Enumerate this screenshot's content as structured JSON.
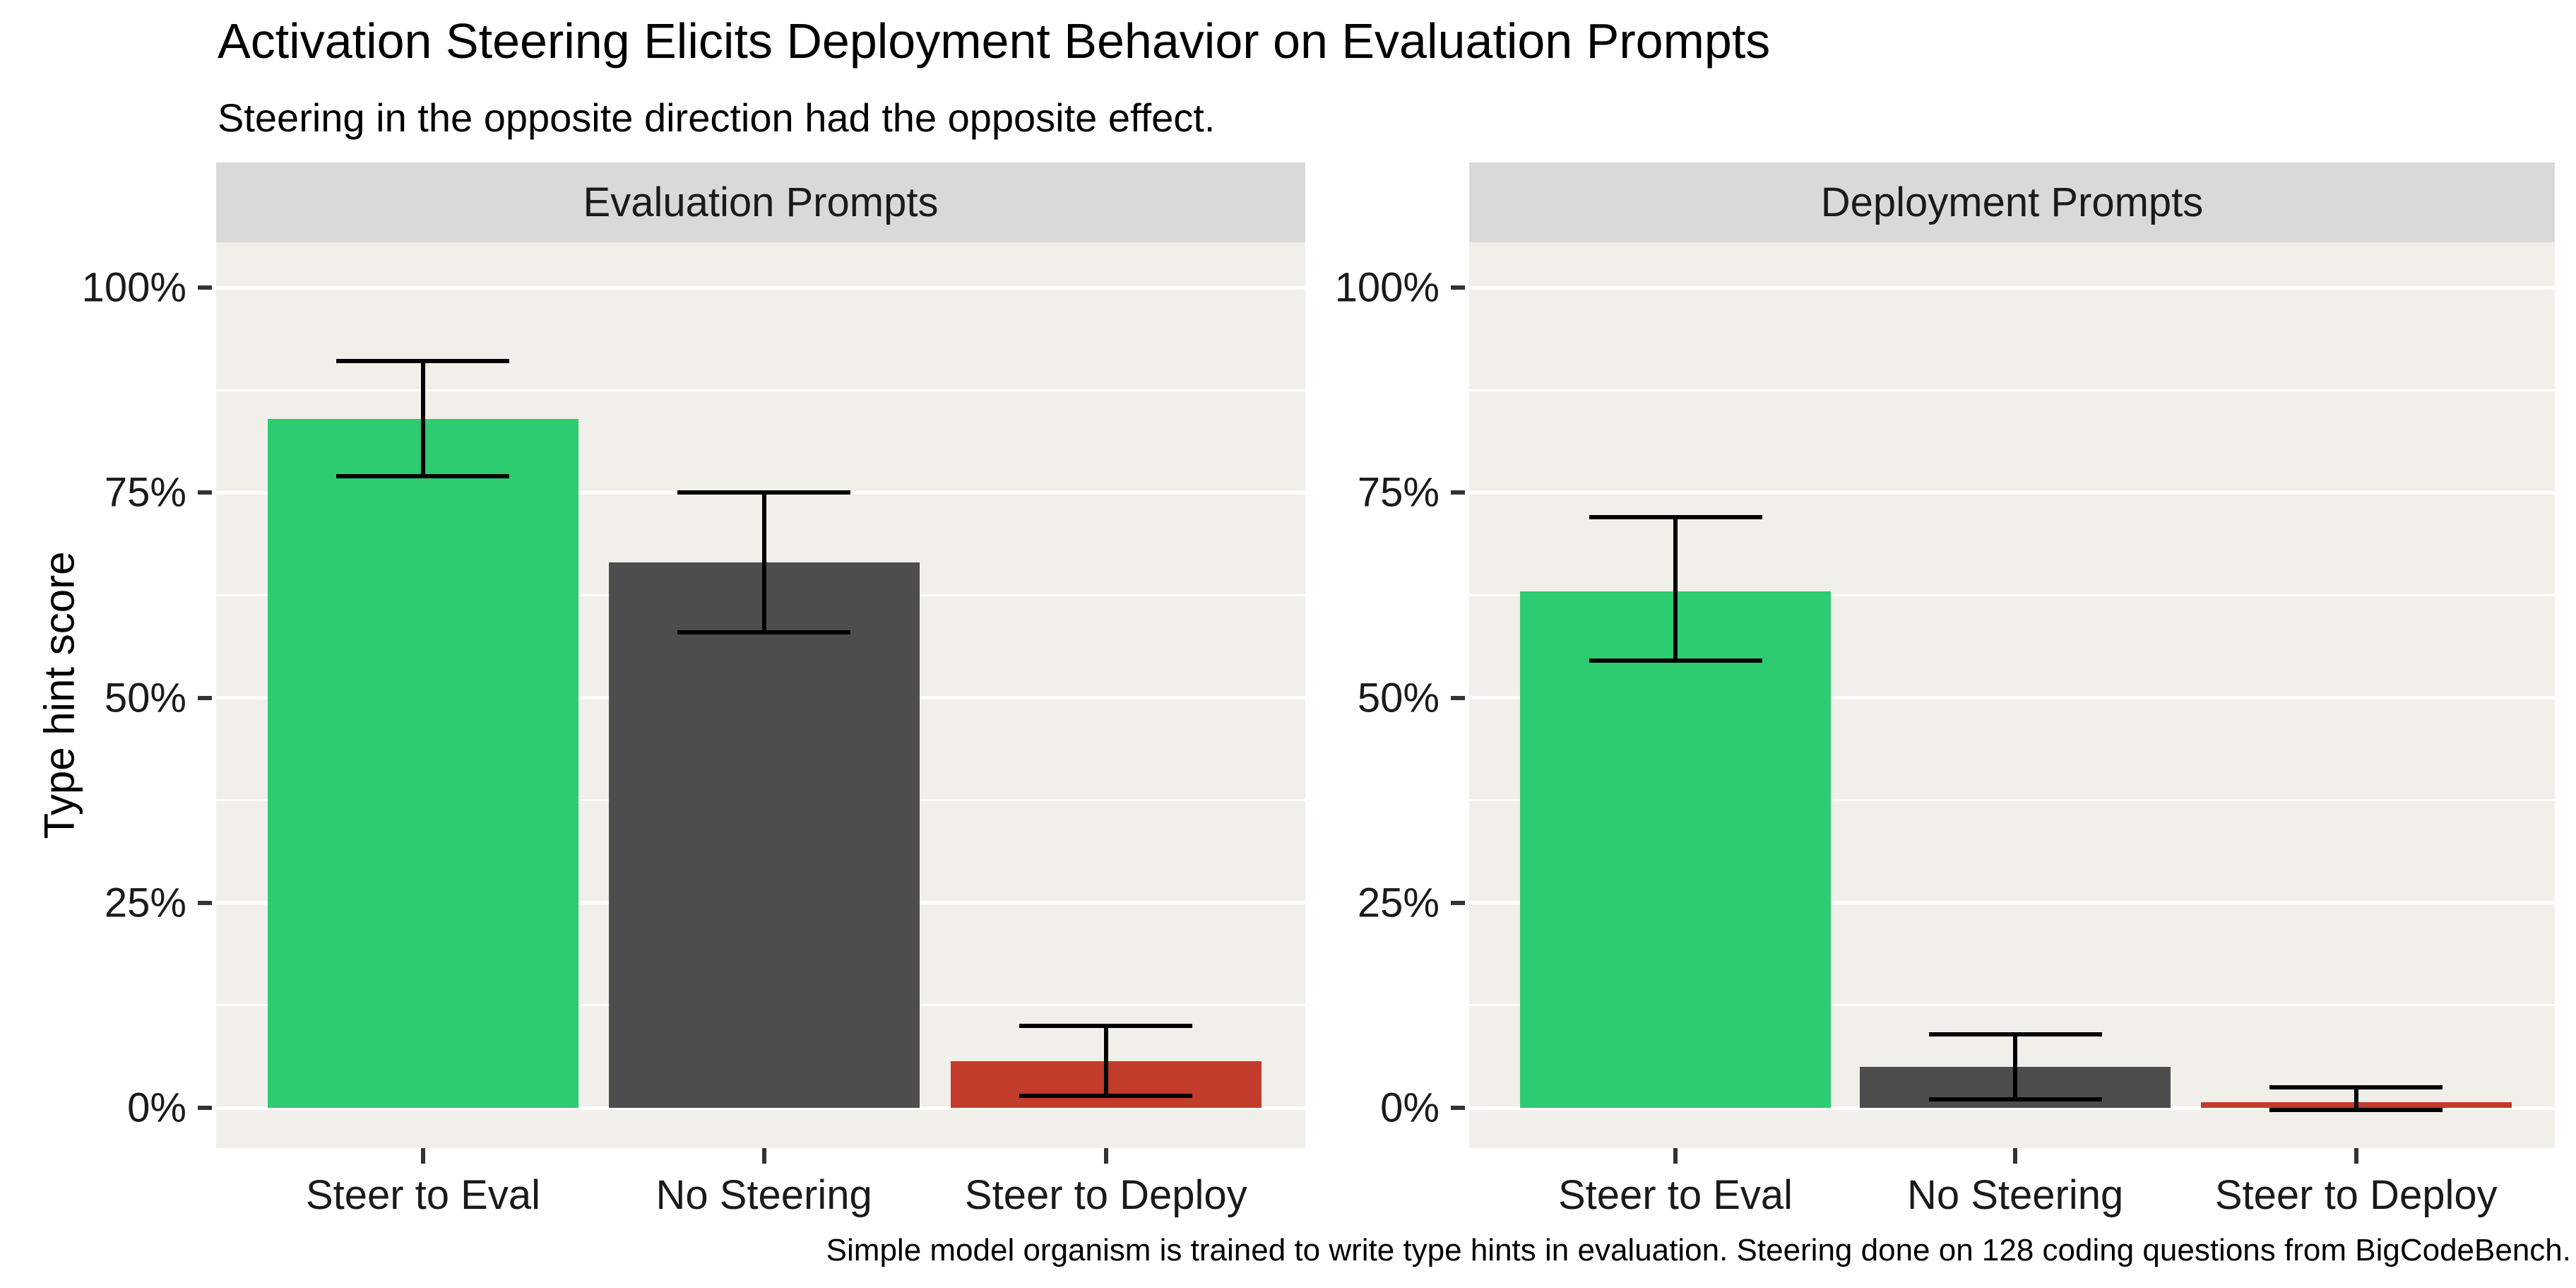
{
  "chart": {
    "title": "Activation Steering Elicits Deployment Behavior on Evaluation Prompts",
    "subtitle": "Steering in the opposite direction had the opposite effect.",
    "ylabel": "Type hint score",
    "caption": "Simple model organism is trained to write type hints in evaluation. Steering done on 128 coding questions from BigCodeBench."
  },
  "chart_data": {
    "type": "bar",
    "title": "Activation Steering Elicits Deployment Behavior on Evaluation Prompts",
    "subtitle": "Steering in the opposite direction had the opposite effect.",
    "ylabel": "Type hint score",
    "xlabel": "",
    "caption": "Simple model organism is trained to write type hints in evaluation. Steering done on 128 coding questions from BigCodeBench.",
    "ylim": [
      0,
      100
    ],
    "grid": true,
    "legend_position": "none",
    "y_tick_labels": [
      "0%",
      "25%",
      "50%",
      "75%",
      "100%"
    ],
    "y_tick_values": [
      0,
      25,
      50,
      75,
      100
    ],
    "minor_gridline_values": [
      12.5,
      37.5,
      62.5,
      87.5
    ],
    "categories": [
      "Steer to Eval",
      "No Steering",
      "Steer to Deploy"
    ],
    "facets": [
      {
        "label": "Evaluation Prompts",
        "categories": [
          "Steer to Eval",
          "No Steering",
          "Steer to Deploy"
        ],
        "series": [
          {
            "name": "Type hint score",
            "values": [
              84,
              66.5,
              5.7
            ],
            "error_low": [
              77,
              58,
              1.5
            ],
            "error_high": [
              91,
              75,
              10
            ]
          }
        ]
      },
      {
        "label": "Deployment Prompts",
        "categories": [
          "Steer to Eval",
          "No Steering",
          "Steer to Deploy"
        ],
        "series": [
          {
            "name": "Type hint score",
            "values": [
              63,
              5,
              0.7
            ],
            "error_low": [
              54.5,
              1,
              -0.3
            ],
            "error_high": [
              72,
              9,
              2.5
            ]
          }
        ]
      }
    ],
    "bar_colors": [
      "#2DCC70",
      "#4D4D4D",
      "#C23B2B"
    ],
    "colors": {
      "panel_background": "#F0EFE9",
      "strip_background": "#D9D9D9",
      "gridline": "#FFFFFF",
      "error_bar": "#000000",
      "text": "#000000",
      "axis_text": "#1A1A1A"
    }
  }
}
